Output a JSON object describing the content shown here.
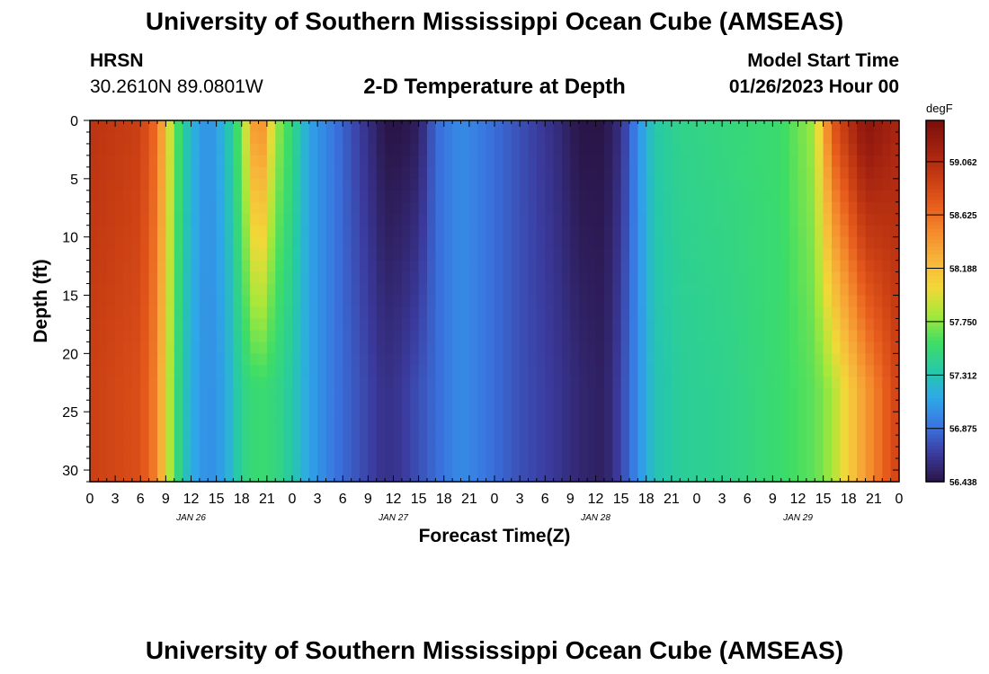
{
  "header": {
    "title": "University of Southern Mississippi Ocean Cube (AMSEAS)",
    "station": "HRSN",
    "coords": "30.2610N  89.0801W",
    "plot_title": "2-D Temperature at Depth",
    "model_label": "Model Start Time",
    "model_time": "01/26/2023 Hour 00"
  },
  "footer": {
    "title": "University of Southern Mississippi Ocean Cube (AMSEAS)"
  },
  "chart_data": {
    "type": "heatmap",
    "title": "2-D Temperature at Depth",
    "xlabel": "Forecast Time(Z)",
    "ylabel": "Depth (ft)",
    "colorbar_unit": "degF",
    "x_ticks": [
      "0",
      "3",
      "6",
      "9",
      "12",
      "15",
      "18",
      "21",
      "0",
      "3",
      "6",
      "9",
      "12",
      "15",
      "18",
      "21",
      "0",
      "3",
      "6",
      "9",
      "12",
      "15",
      "18",
      "21",
      "0",
      "3",
      "6",
      "9",
      "12",
      "15",
      "18",
      "21",
      "0"
    ],
    "date_labels": [
      {
        "label": "JAN 26",
        "hour": 12
      },
      {
        "label": "JAN 27",
        "hour": 36
      },
      {
        "label": "JAN 28",
        "hour": 60
      },
      {
        "label": "JAN 29",
        "hour": 84
      }
    ],
    "x_range_hours": [
      0,
      96
    ],
    "y_ticks": [
      0,
      5,
      10,
      15,
      20,
      25,
      30
    ],
    "y_range": [
      0,
      31
    ],
    "colorbar_ticks": [
      "59.062",
      "58.625",
      "58.188",
      "57.750",
      "57.312",
      "56.875",
      "56.438"
    ],
    "colorbar_range": [
      56.438,
      59.4
    ],
    "surface_profile": [
      [
        0,
        59.0
      ],
      [
        6,
        58.9
      ],
      [
        8,
        58.6
      ],
      [
        10,
        57.7
      ],
      [
        12,
        57.2
      ],
      [
        14,
        57.0
      ],
      [
        16,
        57.2
      ],
      [
        18,
        57.7
      ],
      [
        20,
        58.6
      ],
      [
        22,
        57.8
      ],
      [
        24,
        57.5
      ],
      [
        26,
        57.1
      ],
      [
        29,
        56.9
      ],
      [
        31,
        56.75
      ],
      [
        33,
        56.6
      ],
      [
        35,
        56.44
      ],
      [
        37,
        56.44
      ],
      [
        39,
        56.5
      ],
      [
        41,
        56.85
      ],
      [
        44,
        57.0
      ],
      [
        47,
        56.9
      ],
      [
        51,
        56.75
      ],
      [
        55,
        56.6
      ],
      [
        58,
        56.44
      ],
      [
        61,
        56.44
      ],
      [
        63,
        56.6
      ],
      [
        65,
        57.0
      ],
      [
        67,
        57.35
      ],
      [
        70,
        57.45
      ],
      [
        76,
        57.5
      ],
      [
        82,
        57.55
      ],
      [
        86,
        57.8
      ],
      [
        88,
        58.7
      ],
      [
        92,
        59.3
      ],
      [
        96,
        59.1
      ]
    ],
    "deep_profile": [
      [
        0,
        58.9
      ],
      [
        6,
        58.8
      ],
      [
        8,
        58.5
      ],
      [
        10,
        57.6
      ],
      [
        12,
        57.15
      ],
      [
        14,
        57.0
      ],
      [
        16,
        57.1
      ],
      [
        18,
        57.45
      ],
      [
        20,
        57.55
      ],
      [
        22,
        57.5
      ],
      [
        24,
        57.35
      ],
      [
        26,
        57.1
      ],
      [
        29,
        56.9
      ],
      [
        31,
        56.8
      ],
      [
        33,
        56.7
      ],
      [
        35,
        56.6
      ],
      [
        37,
        56.65
      ],
      [
        39,
        56.75
      ],
      [
        41,
        56.85
      ],
      [
        44,
        57.0
      ],
      [
        47,
        56.9
      ],
      [
        51,
        56.75
      ],
      [
        55,
        56.65
      ],
      [
        58,
        56.55
      ],
      [
        61,
        56.5
      ],
      [
        63,
        56.7
      ],
      [
        65,
        57.0
      ],
      [
        67,
        57.3
      ],
      [
        70,
        57.4
      ],
      [
        76,
        57.45
      ],
      [
        82,
        57.55
      ],
      [
        86,
        57.65
      ],
      [
        88,
        57.8
      ],
      [
        92,
        58.4
      ],
      [
        96,
        58.9
      ]
    ],
    "colors": {
      "colormap": [
        "#2a1548",
        "#3b3b9e",
        "#3a75e0",
        "#2ea8e8",
        "#26c9a8",
        "#3edd66",
        "#a6e83a",
        "#f2d838",
        "#f7b43a",
        "#f48a2c",
        "#e65a1c",
        "#c43a12",
        "#a02010",
        "#7a0f0a"
      ]
    }
  }
}
